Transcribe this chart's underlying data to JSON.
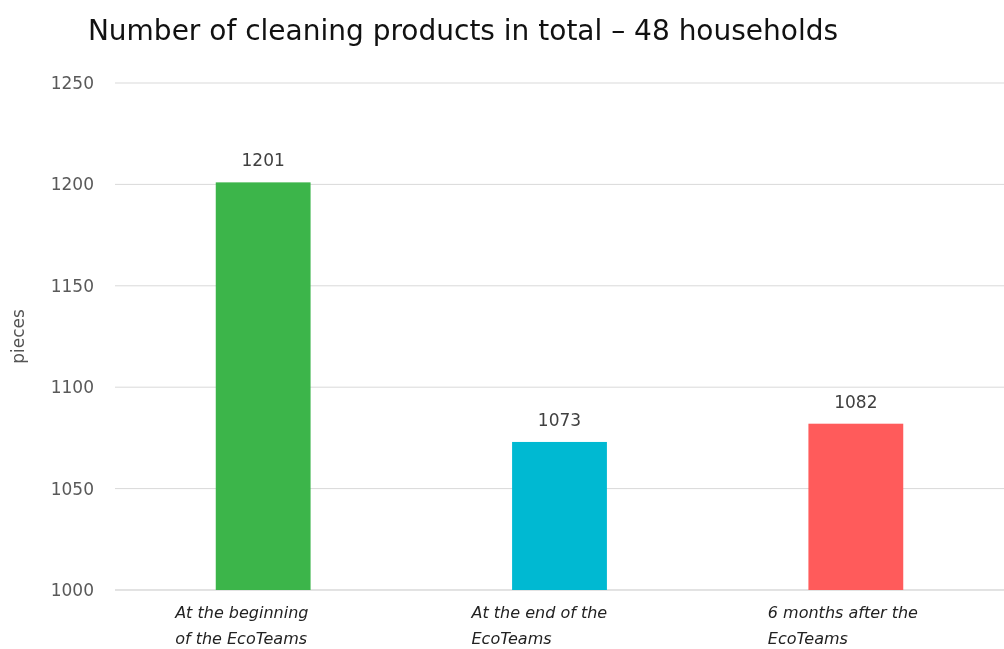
{
  "chart_data": {
    "type": "bar",
    "title": "Number of cleaning products in total – 48 households",
    "ylabel": "pieces",
    "categories": [
      "At the beginning of the EcoTeams",
      "At the end of the EcoTeams",
      "6 months after the EcoTeams"
    ],
    "values": [
      1201,
      1073,
      1082
    ],
    "colors": [
      "#3cb54a",
      "#00b9d2",
      "#ff5b5b"
    ],
    "ylim": [
      1000,
      1250
    ],
    "yticks": [
      1000,
      1050,
      1100,
      1150,
      1200,
      1250
    ],
    "grid": "y",
    "data_labels": true
  }
}
